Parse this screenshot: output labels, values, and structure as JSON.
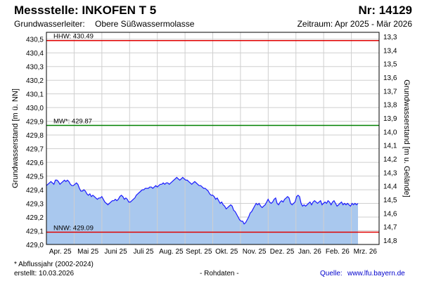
{
  "header": {
    "title": "Messstelle: INKOFEN T 5",
    "number": "Nr: 14129",
    "aquifer_label": "Grundwasserleiter:",
    "aquifer_value": "Obere Süßwassermolasse",
    "period": "Zeitraum: Apr 2025 - Mär 2026"
  },
  "footer": {
    "note": "* Abflussjahr (2002-2024)",
    "created": "erstellt:  10.03.2026",
    "raw": "- Rohdaten -",
    "source_label": "Quelle:",
    "source_link": "www.lfu.bayern.de"
  },
  "colors": {
    "fill": "#a9c8ee",
    "line": "#1a1aff",
    "hhw": "#e00000",
    "nnw": "#e00000",
    "mw": "#008000",
    "grid": "#cfcfcf"
  },
  "chart_data": {
    "type": "area",
    "ylabel_left": "Grundwasserstand [m ü. NN]",
    "ylabel_right": "Grundwasserstand [m u. Gelände]",
    "ylim": [
      429.0,
      430.55
    ],
    "yticks_left": [
      "430,5",
      "430,4",
      "430,3",
      "430,2",
      "430,1",
      "430,0",
      "429,9",
      "429,8",
      "429,7",
      "429,6",
      "429,5",
      "429,4",
      "429,3",
      "429,2",
      "429,1",
      "429,0"
    ],
    "yticks_right": [
      "13,3",
      "13,4",
      "13,5",
      "13,6",
      "13,7",
      "13,8",
      "13,9",
      "14,0",
      "14,1",
      "14,2",
      "14,3",
      "14,4",
      "14,5",
      "14,6",
      "14,7",
      "14,8"
    ],
    "xticks": [
      "Apr. 25",
      "Mai 25",
      "Juni 25",
      "Juli 25",
      "Aug. 25",
      "Sept. 25",
      "Okt. 25",
      "Nov. 25",
      "Dez. 25",
      "Jan. 26",
      "Feb. 26",
      "Mrz. 26"
    ],
    "reference_lines": [
      {
        "label": "HHW: 430.49",
        "value": 430.49,
        "kind": "hhw"
      },
      {
        "label": "MW*: 429.87",
        "value": 429.87,
        "kind": "mw"
      },
      {
        "label": "NNW: 429.09",
        "value": 429.09,
        "kind": "nnw"
      }
    ],
    "series": [
      {
        "values": [
          429.43,
          429.44,
          429.45,
          429.46,
          429.45,
          429.44,
          429.47,
          429.47,
          429.46,
          429.44,
          429.45,
          429.46,
          429.47,
          429.46,
          429.47,
          429.46,
          429.44,
          429.43,
          429.43,
          429.44,
          429.45,
          429.44,
          429.41,
          429.39,
          429.39,
          429.4,
          429.39,
          429.37,
          429.36,
          429.37,
          429.35,
          429.36,
          429.35,
          429.34,
          429.33,
          429.34,
          429.34,
          429.35,
          429.33,
          429.31,
          429.3,
          429.29,
          429.3,
          429.31,
          429.32,
          429.32,
          429.33,
          429.32,
          429.33,
          429.35,
          429.36,
          429.35,
          429.33,
          429.34,
          429.33,
          429.31,
          429.31,
          429.32,
          429.33,
          429.34,
          429.36,
          429.37,
          429.38,
          429.39,
          429.4,
          429.4,
          429.41,
          429.41,
          429.41,
          429.42,
          429.42,
          429.41,
          429.42,
          429.43,
          429.42,
          429.43,
          429.44,
          429.44,
          429.45,
          429.44,
          429.45,
          429.45,
          429.44,
          429.45,
          429.46,
          429.47,
          429.48,
          429.49,
          429.48,
          429.47,
          429.48,
          429.49,
          429.48,
          429.47,
          429.47,
          429.46,
          429.45,
          429.44,
          429.45,
          429.46,
          429.45,
          429.44,
          429.43,
          429.43,
          429.42,
          429.41,
          429.41,
          429.4,
          429.39,
          429.37,
          429.36,
          429.36,
          429.35,
          429.33,
          429.34,
          429.32,
          429.3,
          429.31,
          429.29,
          429.28,
          429.26,
          429.27,
          429.28,
          429.29,
          429.28,
          429.25,
          429.24,
          429.22,
          429.2,
          429.18,
          429.17,
          429.17,
          429.15,
          429.16,
          429.18,
          429.2,
          429.23,
          429.24,
          429.26,
          429.28,
          429.3,
          429.29,
          429.3,
          429.28,
          429.27,
          429.28,
          429.29,
          429.31,
          429.33,
          429.31,
          429.3,
          429.31,
          429.33,
          429.34,
          429.3,
          429.29,
          429.31,
          429.32,
          429.31,
          429.33,
          429.34,
          429.35,
          429.34,
          429.3,
          429.29,
          429.3,
          429.31,
          429.35,
          429.36,
          429.35,
          429.3,
          429.28,
          429.29,
          429.28,
          429.29,
          429.3,
          429.31,
          429.29,
          429.31,
          429.32,
          429.31,
          429.3,
          429.31,
          429.32,
          429.29,
          429.3,
          429.31,
          429.3,
          429.32,
          429.31,
          429.29,
          429.31,
          429.32,
          429.3,
          429.28,
          429.29,
          429.3,
          429.31,
          429.29,
          429.3,
          429.29,
          429.3,
          429.29,
          429.28,
          429.3,
          429.29,
          429.3,
          429.29,
          429.3
        ]
      }
    ]
  }
}
